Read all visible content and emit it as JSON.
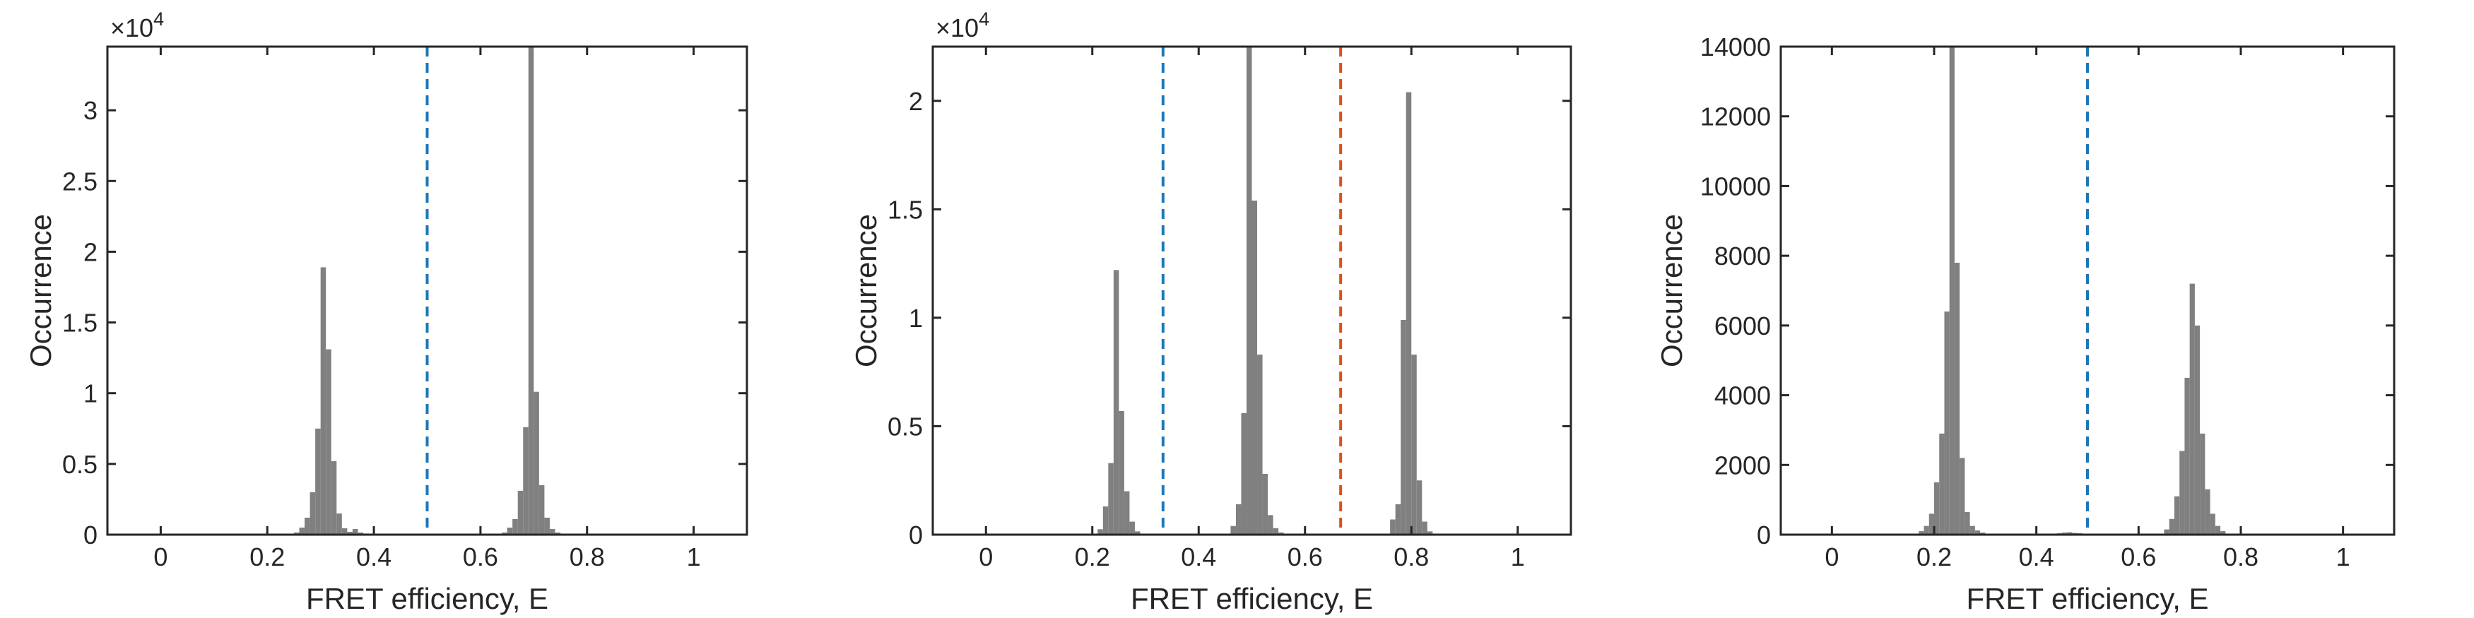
{
  "colors": {
    "bar": "#808080",
    "axis": "#262626",
    "blue_line": "#1f77b4",
    "red_line": "#d95319"
  },
  "chart_data": [
    {
      "type": "bar",
      "xlabel": "FRET efficiency, E",
      "ylabel": "Occurrence",
      "xlim": [
        -0.1,
        1.1
      ],
      "ylim": [
        0,
        34500
      ],
      "xticks": [
        0,
        0.2,
        0.4,
        0.6,
        0.8,
        1
      ],
      "xtick_labels": [
        "0",
        "0.2",
        "0.4",
        "0.6",
        "0.8",
        "1"
      ],
      "yticks": [
        0,
        5000,
        10000,
        15000,
        20000,
        25000,
        30000
      ],
      "ytick_labels": [
        "0",
        "0.5",
        "1",
        "1.5",
        "2",
        "2.5",
        "3"
      ],
      "y_exponent": {
        "base": "×10",
        "power": "4"
      },
      "bin_width": 0.01,
      "bins": [
        {
          "x": 0.255,
          "y": 150
        },
        {
          "x": 0.265,
          "y": 500
        },
        {
          "x": 0.275,
          "y": 1200
        },
        {
          "x": 0.285,
          "y": 3000
        },
        {
          "x": 0.295,
          "y": 7500
        },
        {
          "x": 0.305,
          "y": 18900
        },
        {
          "x": 0.315,
          "y": 13100
        },
        {
          "x": 0.325,
          "y": 5200
        },
        {
          "x": 0.335,
          "y": 1500
        },
        {
          "x": 0.345,
          "y": 450
        },
        {
          "x": 0.355,
          "y": 200
        },
        {
          "x": 0.365,
          "y": 400
        },
        {
          "x": 0.375,
          "y": 150
        },
        {
          "x": 0.385,
          "y": 80
        },
        {
          "x": 0.645,
          "y": 150
        },
        {
          "x": 0.655,
          "y": 500
        },
        {
          "x": 0.665,
          "y": 1100
        },
        {
          "x": 0.675,
          "y": 3100
        },
        {
          "x": 0.685,
          "y": 7600
        },
        {
          "x": 0.695,
          "y": 34500
        },
        {
          "x": 0.705,
          "y": 10100
        },
        {
          "x": 0.715,
          "y": 3500
        },
        {
          "x": 0.725,
          "y": 1200
        },
        {
          "x": 0.735,
          "y": 400
        },
        {
          "x": 0.745,
          "y": 150
        }
      ],
      "vlines": [
        {
          "x": 0.5,
          "color": "blue_line"
        }
      ]
    },
    {
      "type": "bar",
      "xlabel": "FRET efficiency, E",
      "ylabel": "Occurrence",
      "xlim": [
        -0.1,
        1.1
      ],
      "ylim": [
        0,
        22500
      ],
      "xticks": [
        0,
        0.2,
        0.4,
        0.6,
        0.8,
        1
      ],
      "xtick_labels": [
        "0",
        "0.2",
        "0.4",
        "0.6",
        "0.8",
        "1"
      ],
      "yticks": [
        0,
        5000,
        10000,
        15000,
        20000
      ],
      "ytick_labels": [
        "0",
        "0.5",
        "1",
        "1.5",
        "2"
      ],
      "y_exponent": {
        "base": "×10",
        "power": "4"
      },
      "bin_width": 0.01,
      "bins": [
        {
          "x": 0.215,
          "y": 250
        },
        {
          "x": 0.225,
          "y": 1300
        },
        {
          "x": 0.235,
          "y": 3300
        },
        {
          "x": 0.245,
          "y": 12200
        },
        {
          "x": 0.255,
          "y": 5700
        },
        {
          "x": 0.265,
          "y": 2000
        },
        {
          "x": 0.275,
          "y": 600
        },
        {
          "x": 0.285,
          "y": 150
        },
        {
          "x": 0.465,
          "y": 400
        },
        {
          "x": 0.475,
          "y": 1400
        },
        {
          "x": 0.485,
          "y": 5600
        },
        {
          "x": 0.495,
          "y": 22500
        },
        {
          "x": 0.505,
          "y": 15400
        },
        {
          "x": 0.515,
          "y": 8300
        },
        {
          "x": 0.525,
          "y": 2800
        },
        {
          "x": 0.535,
          "y": 900
        },
        {
          "x": 0.545,
          "y": 300
        },
        {
          "x": 0.555,
          "y": 100
        },
        {
          "x": 0.765,
          "y": 700
        },
        {
          "x": 0.775,
          "y": 1400
        },
        {
          "x": 0.785,
          "y": 9900
        },
        {
          "x": 0.795,
          "y": 20400
        },
        {
          "x": 0.805,
          "y": 8300
        },
        {
          "x": 0.815,
          "y": 2500
        },
        {
          "x": 0.825,
          "y": 600
        },
        {
          "x": 0.835,
          "y": 150
        }
      ],
      "vlines": [
        {
          "x": 0.333,
          "color": "blue_line"
        },
        {
          "x": 0.667,
          "color": "red_line"
        }
      ]
    },
    {
      "type": "bar",
      "xlabel": "FRET efficiency, E",
      "ylabel": "Occurrence",
      "xlim": [
        -0.1,
        1.1
      ],
      "ylim": [
        0,
        14000
      ],
      "xticks": [
        0,
        0.2,
        0.4,
        0.6,
        0.8,
        1
      ],
      "xtick_labels": [
        "0",
        "0.2",
        "0.4",
        "0.6",
        "0.8",
        "1"
      ],
      "yticks": [
        0,
        2000,
        4000,
        6000,
        8000,
        10000,
        12000,
        14000
      ],
      "ytick_labels": [
        "0",
        "2000",
        "4000",
        "6000",
        "8000",
        "10000",
        "12000",
        "14000"
      ],
      "bin_width": 0.01,
      "bins": [
        {
          "x": 0.175,
          "y": 100
        },
        {
          "x": 0.185,
          "y": 250
        },
        {
          "x": 0.195,
          "y": 600
        },
        {
          "x": 0.205,
          "y": 1500
        },
        {
          "x": 0.215,
          "y": 2900
        },
        {
          "x": 0.225,
          "y": 6400
        },
        {
          "x": 0.235,
          "y": 14000
        },
        {
          "x": 0.245,
          "y": 7800
        },
        {
          "x": 0.255,
          "y": 2200
        },
        {
          "x": 0.265,
          "y": 650
        },
        {
          "x": 0.275,
          "y": 250
        },
        {
          "x": 0.285,
          "y": 120
        },
        {
          "x": 0.295,
          "y": 60
        },
        {
          "x": 0.445,
          "y": 40
        },
        {
          "x": 0.455,
          "y": 60
        },
        {
          "x": 0.465,
          "y": 70
        },
        {
          "x": 0.475,
          "y": 50
        },
        {
          "x": 0.485,
          "y": 40
        },
        {
          "x": 0.655,
          "y": 150
        },
        {
          "x": 0.665,
          "y": 450
        },
        {
          "x": 0.675,
          "y": 1100
        },
        {
          "x": 0.685,
          "y": 2400
        },
        {
          "x": 0.695,
          "y": 4500
        },
        {
          "x": 0.705,
          "y": 7200
        },
        {
          "x": 0.715,
          "y": 6000
        },
        {
          "x": 0.725,
          "y": 2900
        },
        {
          "x": 0.735,
          "y": 1300
        },
        {
          "x": 0.745,
          "y": 600
        },
        {
          "x": 0.755,
          "y": 250
        },
        {
          "x": 0.765,
          "y": 100
        }
      ],
      "vlines": [
        {
          "x": 0.5,
          "color": "blue_line"
        }
      ]
    }
  ]
}
